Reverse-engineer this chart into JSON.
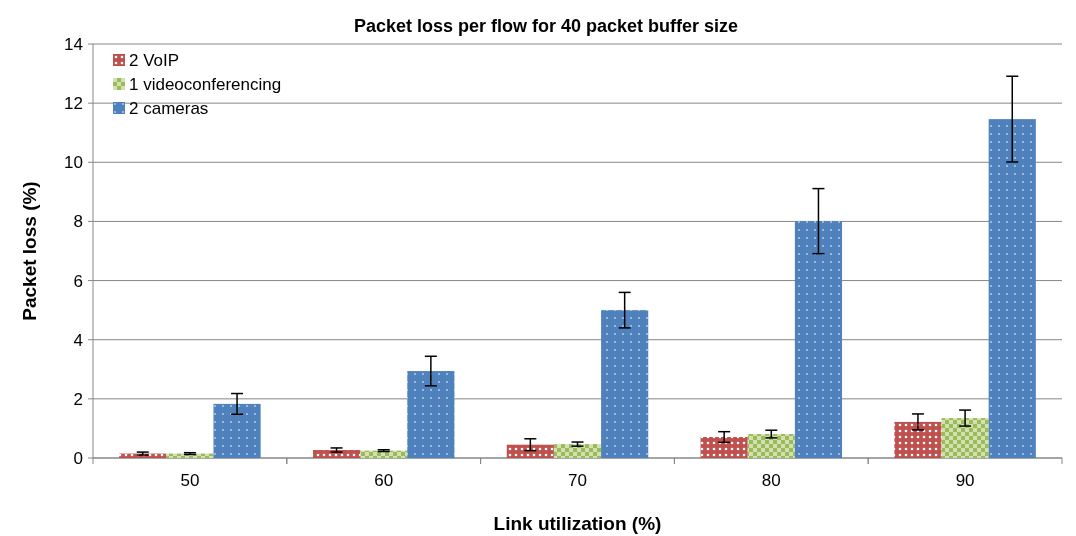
{
  "chart_data": {
    "type": "bar",
    "title": "Packet loss per flow for 40 packet buffer size",
    "xlabel": "Link utilization (%)",
    "ylabel": "Packet loss (%)",
    "categories": [
      "50",
      "60",
      "70",
      "80",
      "90"
    ],
    "series": [
      {
        "name": "2 VoIP",
        "color": "#c0504d",
        "values": [
          0.15,
          0.27,
          0.45,
          0.71,
          1.22
        ],
        "errors": [
          0.05,
          0.07,
          0.2,
          0.18,
          0.27
        ]
      },
      {
        "name": "1 videoconferencing",
        "color": "#9bbb59",
        "values": [
          0.15,
          0.25,
          0.47,
          0.81,
          1.35
        ],
        "errors": [
          0.03,
          0.03,
          0.07,
          0.13,
          0.27
        ]
      },
      {
        "name": "2 cameras",
        "color": "#4f81bd",
        "values": [
          1.83,
          2.94,
          5.0,
          8.01,
          11.46
        ],
        "errors": [
          0.35,
          0.5,
          0.6,
          1.1,
          1.45
        ]
      }
    ],
    "ylim": [
      0,
      14
    ],
    "yticks": [
      0,
      2,
      4,
      6,
      8,
      10,
      12,
      14
    ],
    "grid": "y",
    "legend": "top left"
  }
}
